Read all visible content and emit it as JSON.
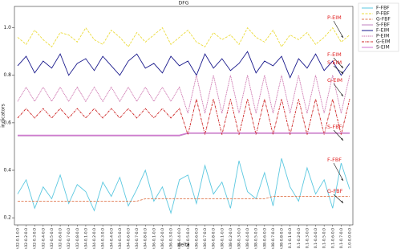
{
  "chart_data": {
    "type": "line",
    "title": "DFG",
    "x_label": "delta",
    "y_label": "indicators",
    "ylim": [
      0.17,
      1.09
    ],
    "yticks": [
      0.2,
      0.4,
      0.6,
      0.8,
      {
        "value": 1,
        "label": "1.0"
      }
    ],
    "legend": "upper right",
    "grid": false,
    "categories": [
      "0.02-0.1-0.0",
      "0.02-0.2-0.0",
      "0.02-0.3-0.0",
      "0.02-0.4-0.0",
      "0.02-0.5-0.0",
      "0.02-0.6-0.0",
      "0.02-0.7-0.0",
      "0.02-0.8-0.0",
      "0.04-0.1-0.0",
      "0.04-0.2-0.0",
      "0.04-0.3-0.0",
      "0.04-0.4-0.0",
      "0.04-0.5-0.0",
      "0.04-0.6-0.0",
      "0.04-0.7-0.0",
      "0.04-0.8-0.0",
      "0.06-0.1-0.0",
      "0.06-0.2-0.0",
      "0.06-0.3-0.0",
      "0.06-0.4-0.0",
      "0.06-0.5-0.0",
      "0.06-0.6-0.0",
      "0.06-0.7-0.0",
      "0.06-0.8-0.0",
      "0.08-0.1-0.0",
      "0.08-0.2-0.0",
      "0.08-0.3-0.0",
      "0.08-0.4-0.0",
      "0.08-0.5-0.0",
      "0.08-0.6-0.0",
      "0.08-0.7-0.0",
      "0.08-0.8-0.0",
      "0.1-0.1-0.0",
      "0.1-0.2-0.0",
      "0.1-0.3-0.0",
      "0.1-0.4-0.0",
      "0.1-0.5-0.0",
      "0.1-0.6-0.0",
      "0.1-0.7-0.0",
      "1.0-0.0-0.0"
    ],
    "series": [
      {
        "name": "F-FBF",
        "color": "#5bc8e0",
        "dash": "solid",
        "values": [
          0.3,
          0.36,
          0.24,
          0.33,
          0.28,
          0.38,
          0.26,
          0.34,
          0.31,
          0.23,
          0.35,
          0.29,
          0.37,
          0.25,
          0.32,
          0.4,
          0.27,
          0.33,
          0.22,
          0.36,
          0.38,
          0.26,
          0.42,
          0.3,
          0.35,
          0.24,
          0.44,
          0.31,
          0.28,
          0.39,
          0.25,
          0.45,
          0.33,
          0.27,
          0.41,
          0.3,
          0.36,
          0.24,
          0.43,
          0.32
        ]
      },
      {
        "name": "P-FBF",
        "color": "#ecdc3c",
        "dash": "dashed",
        "values": [
          0.96,
          0.93,
          0.99,
          0.95,
          0.92,
          0.98,
          0.97,
          0.94,
          1.0,
          0.95,
          0.93,
          0.99,
          0.96,
          0.92,
          0.98,
          0.94,
          0.97,
          1.0,
          0.93,
          0.96,
          0.99,
          0.94,
          0.92,
          0.98,
          0.95,
          0.97,
          0.93,
          1.0,
          0.96,
          0.94,
          0.99,
          0.92,
          0.97,
          0.95,
          0.98,
          0.93,
          0.96,
          1.0,
          0.94,
          0.97
        ]
      },
      {
        "name": "G-FBF",
        "color": "#e07a50",
        "dash": "dashed",
        "values": [
          0.27,
          0.27,
          0.27,
          0.27,
          0.27,
          0.27,
          0.27,
          0.27,
          0.27,
          0.27,
          0.27,
          0.27,
          0.27,
          0.27,
          0.27,
          0.28,
          0.28,
          0.28,
          0.28,
          0.28,
          0.28,
          0.28,
          0.28,
          0.28,
          0.28,
          0.28,
          0.28,
          0.28,
          0.28,
          0.28,
          0.29,
          0.29,
          0.29,
          0.29,
          0.29,
          0.29,
          0.29,
          0.29,
          0.29,
          0.29
        ]
      },
      {
        "name": "S-FBF",
        "color": "#c080c0",
        "dash": "solid",
        "values": [
          0.545,
          0.545,
          0.545,
          0.545,
          0.545,
          0.545,
          0.545,
          0.545,
          0.545,
          0.545,
          0.545,
          0.545,
          0.545,
          0.545,
          0.545,
          0.545,
          0.545,
          0.545,
          0.545,
          0.545,
          0.555,
          0.555,
          0.555,
          0.555,
          0.555,
          0.555,
          0.555,
          0.555,
          0.555,
          0.555,
          0.555,
          0.555,
          0.555,
          0.555,
          0.555,
          0.555,
          0.555,
          0.555,
          0.555,
          0.555
        ]
      },
      {
        "name": "F-EIM",
        "color": "#1a1a8c",
        "dash": "solid",
        "values": [
          0.84,
          0.88,
          0.81,
          0.86,
          0.83,
          0.89,
          0.8,
          0.85,
          0.87,
          0.82,
          0.88,
          0.84,
          0.8,
          0.86,
          0.89,
          0.83,
          0.85,
          0.81,
          0.88,
          0.84,
          0.86,
          0.8,
          0.89,
          0.83,
          0.87,
          0.82,
          0.85,
          0.9,
          0.81,
          0.86,
          0.84,
          0.88,
          0.79,
          0.87,
          0.83,
          0.89,
          0.82,
          0.86,
          0.8,
          0.85
        ]
      },
      {
        "name": "P-EIM",
        "color": "#c0509a",
        "dash": "dotted",
        "values": [
          0.69,
          0.75,
          0.69,
          0.75,
          0.69,
          0.75,
          0.69,
          0.75,
          0.69,
          0.75,
          0.69,
          0.75,
          0.69,
          0.75,
          0.69,
          0.75,
          0.69,
          0.75,
          0.69,
          0.75,
          0.64,
          0.8,
          0.64,
          0.8,
          0.64,
          0.8,
          0.64,
          0.8,
          0.64,
          0.8,
          0.64,
          0.8,
          0.64,
          0.8,
          0.64,
          0.8,
          0.64,
          0.8,
          0.64,
          0.8
        ]
      },
      {
        "name": "G-EIM",
        "color": "#cc2020",
        "dash": "dashdot",
        "values": [
          0.62,
          0.66,
          0.62,
          0.66,
          0.62,
          0.66,
          0.62,
          0.66,
          0.62,
          0.66,
          0.62,
          0.66,
          0.62,
          0.66,
          0.62,
          0.66,
          0.62,
          0.66,
          0.62,
          0.66,
          0.55,
          0.7,
          0.55,
          0.7,
          0.55,
          0.7,
          0.55,
          0.7,
          0.55,
          0.7,
          0.55,
          0.7,
          0.55,
          0.7,
          0.55,
          0.7,
          0.55,
          0.7,
          0.55,
          0.7
        ]
      },
      {
        "name": "S-EIM",
        "color": "#d070d0",
        "dash": "solid",
        "values": [
          0.548,
          0.548,
          0.548,
          0.548,
          0.548,
          0.548,
          0.548,
          0.548,
          0.548,
          0.548,
          0.548,
          0.548,
          0.548,
          0.548,
          0.548,
          0.548,
          0.548,
          0.548,
          0.548,
          0.548,
          0.558,
          0.558,
          0.558,
          0.558,
          0.558,
          0.558,
          0.558,
          0.558,
          0.558,
          0.558,
          0.558,
          0.558,
          0.558,
          0.558,
          0.558,
          0.558,
          0.558,
          0.558,
          0.558,
          0.558
        ]
      }
    ],
    "annotations": [
      "P-EIM",
      "F-EIM",
      "S-EIM",
      "G-EIM",
      "S-FBF",
      "F-FBF",
      "G-FBF"
    ]
  }
}
